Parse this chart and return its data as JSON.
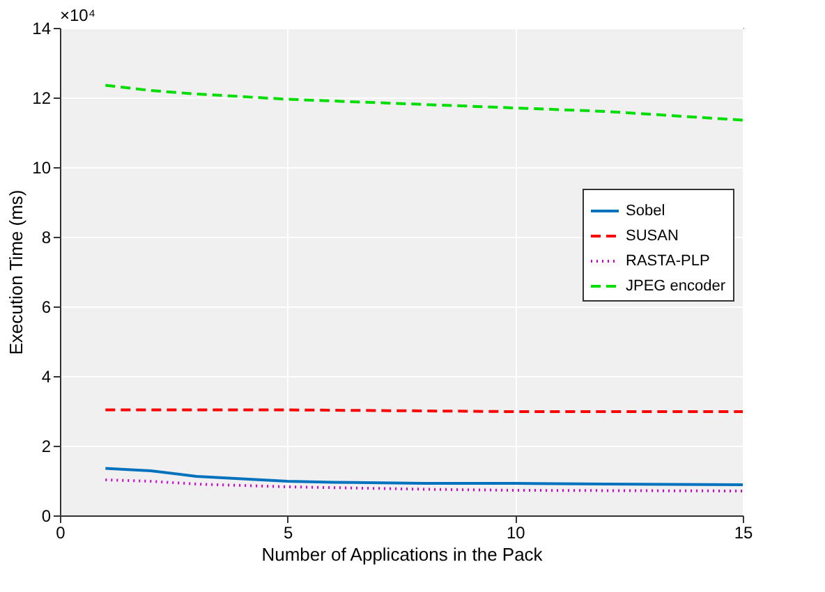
{
  "chart_data": {
    "type": "line",
    "xlabel": "Number of Applications in the Pack",
    "ylabel": "Execution Time (ms)",
    "annotations": [
      "×10⁴"
    ],
    "xlim": [
      0,
      15
    ],
    "xticks": [
      0,
      5,
      10,
      15
    ],
    "ylim": [
      0,
      14
    ],
    "yticks": [
      0,
      2,
      4,
      6,
      8,
      10,
      12,
      14
    ],
    "grid": true,
    "legend": "right",
    "series": [
      {
        "name": "Sobel",
        "color": "#0072bd",
        "line_style": "solid",
        "x": [
          1,
          2,
          3,
          4,
          5,
          6,
          8,
          10,
          12,
          15
        ],
        "values": [
          1.35,
          1.28,
          1.12,
          1.05,
          0.98,
          0.95,
          0.92,
          0.92,
          0.9,
          0.88
        ]
      },
      {
        "name": "SUSAN",
        "color": "#ff0000",
        "line_style": "dashed",
        "x": [
          1,
          5,
          10,
          15
        ],
        "values": [
          3.03,
          3.03,
          2.98,
          2.98
        ]
      },
      {
        "name": "RASTA-PLP",
        "color": "#cc00cc",
        "line_style": "dotted",
        "x": [
          1,
          2,
          3,
          5,
          8,
          10,
          15
        ],
        "values": [
          1.02,
          0.98,
          0.9,
          0.82,
          0.75,
          0.72,
          0.7
        ]
      },
      {
        "name": "JPEG encoder",
        "color": "#00dd00",
        "line_style": "dashed",
        "x": [
          1,
          2,
          3,
          5,
          8,
          10,
          12,
          15
        ],
        "values": [
          12.35,
          12.2,
          12.1,
          11.95,
          11.8,
          11.7,
          11.6,
          11.35
        ]
      }
    ]
  }
}
